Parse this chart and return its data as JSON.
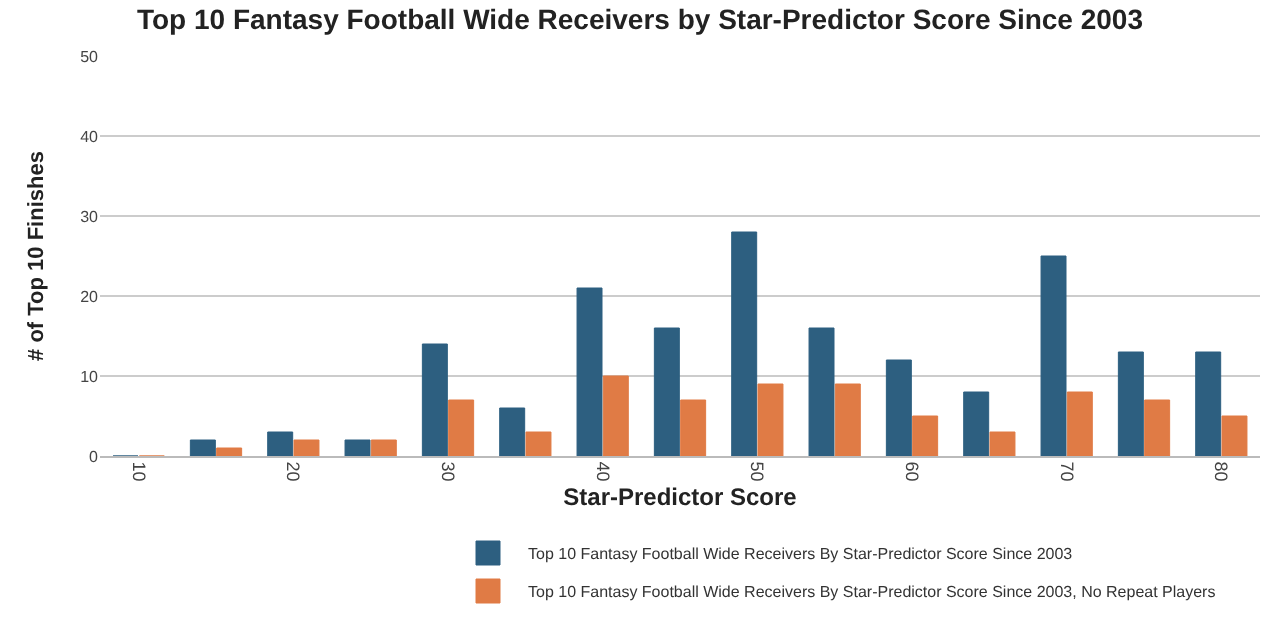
{
  "chart_data": {
    "type": "bar",
    "title": "Top 10 Fantasy Football Wide Receivers by Star-Predictor Score Since 2003",
    "xlabel": "Star-Predictor Score",
    "ylabel": "# of Top 10 Finishes",
    "categories": [
      "10",
      null,
      "20",
      null,
      "30",
      null,
      "40",
      null,
      "50",
      null,
      "60",
      null,
      "70",
      null,
      "80"
    ],
    "series": [
      {
        "name": "Top 10 Fantasy Football Wide Receivers By Star-Predictor Score Since 2003",
        "color": "#2d5f80",
        "values": [
          0,
          2,
          3,
          2,
          14,
          6,
          21,
          16,
          28,
          16,
          12,
          8,
          25,
          13,
          13
        ]
      },
      {
        "name": "Top 10 Fantasy Football Wide Receivers By Star-Predictor Score Since 2003, No Repeat Players",
        "color": "#e07b45",
        "values": [
          0,
          1,
          2,
          2,
          7,
          3,
          10,
          7,
          9,
          9,
          5,
          3,
          8,
          7,
          5
        ]
      }
    ],
    "ylim": [
      0,
      50
    ],
    "yticks": [
      0,
      10,
      20,
      30,
      40,
      50
    ],
    "grid": "y",
    "legend": "bottom"
  }
}
